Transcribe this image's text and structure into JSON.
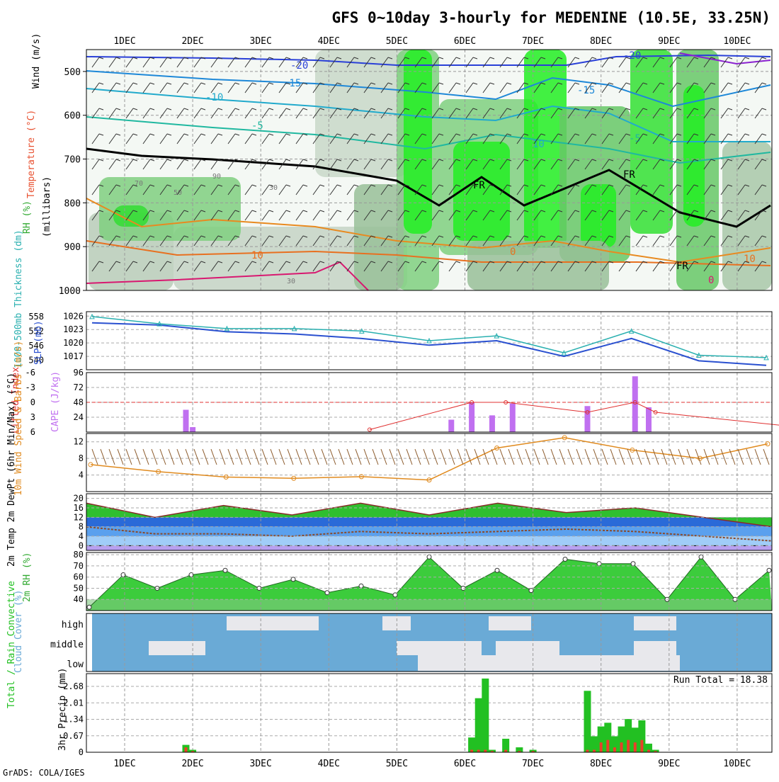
{
  "title": "GFS 0~10day 3-hourly for MEDENINE (10.5E, 33.25N)",
  "credit": "GrADS: COLA/IGES",
  "run_total_label": "Run Total = 18.38",
  "day_labels": [
    "1DEC",
    "2DEC",
    "3DEC",
    "4DEC",
    "5DEC",
    "6DEC",
    "7DEC",
    "8DEC",
    "9DEC",
    "10DEC"
  ],
  "colors": {
    "wind_line": "#8b5a2b",
    "speed": "#e08a1e",
    "rain": "#22c022",
    "convective": "#e8402a",
    "cape": "#c070f0",
    "slp": "#2a50d0",
    "thick": "#2ab0b0",
    "cloud": "#6aaad6",
    "rh_green": "#33cc33",
    "frame": "#000000"
  },
  "chart_data": [
    {
      "type": "heatmap",
      "panel": "upper_air",
      "ylabel_parts": [
        {
          "text": "Wind (m/s)",
          "color": "#000000"
        },
        {
          "text": "Temperature (°C)",
          "color": "#e85030"
        },
        {
          "text": "RH (%)",
          "color": "#33aa33"
        },
        {
          "text": "(millibars)",
          "color": "#000000"
        }
      ],
      "y_ticks": [
        500,
        600,
        700,
        800,
        900,
        1000
      ],
      "ylim": [
        1000,
        450
      ],
      "isotherm_labels": [
        "-20",
        "-15",
        "-10",
        "-5",
        "FR",
        "FR",
        "10",
        "0",
        "-20",
        "-15",
        "10",
        "-5",
        "FR",
        "10",
        "0"
      ],
      "rh_labels": [
        "70",
        "90",
        "30",
        "50",
        "30"
      ]
    },
    {
      "type": "line",
      "panel": "thickness_slp",
      "ylabel_left": "1000-500mb Thickness (dm)",
      "ylabel_right": "SLP (mb)",
      "y_ticks_thickness": [
        540,
        546,
        552,
        558
      ],
      "y_ticks_slp": [
        1017,
        1020,
        1023,
        1026
      ],
      "x": [
        0,
        1,
        2,
        3,
        4,
        5,
        6,
        7,
        8,
        9,
        10
      ],
      "series": [
        {
          "name": "SLP",
          "values": [
            1024.5,
            1024,
            1022.5,
            1022,
            1021,
            1019.5,
            1020.5,
            1017,
            1021,
            1016,
            1015
          ]
        },
        {
          "name": "Thickness",
          "values": [
            558,
            555,
            553,
            553,
            552,
            548,
            550,
            543,
            552,
            542,
            541
          ]
        }
      ]
    },
    {
      "type": "bar",
      "panel": "cape_li",
      "ylabel_left": "Lifted Index",
      "ylabel_right": "CAPE (J/kg)",
      "y_ticks_li": [
        -6,
        -3,
        0,
        3,
        6
      ],
      "y_ticks_cape": [
        24,
        48,
        72,
        96
      ],
      "cape": [
        {
          "day": 0.9,
          "v": 36
        },
        {
          "day": 1.0,
          "v": 8
        },
        {
          "day": 4.8,
          "v": 20
        },
        {
          "day": 5.1,
          "v": 48
        },
        {
          "day": 5.4,
          "v": 27
        },
        {
          "day": 5.7,
          "v": 46
        },
        {
          "day": 6.8,
          "v": 42
        },
        {
          "day": 7.5,
          "v": 90
        },
        {
          "day": 7.7,
          "v": 40
        }
      ],
      "li": [
        {
          "day": 3.6,
          "v": 5.5
        },
        {
          "day": 5.1,
          "v": 0
        },
        {
          "day": 5.6,
          "v": 0
        },
        {
          "day": 6.8,
          "v": 2
        },
        {
          "day": 7.5,
          "v": 0
        },
        {
          "day": 7.8,
          "v": 2
        },
        {
          "day": 9.9,
          "v": 5
        }
      ]
    },
    {
      "type": "line",
      "panel": "wind10m",
      "ylabel": "10m Wind Speed & Barbs (m/s)",
      "y_ticks": [
        4,
        8,
        12
      ],
      "x": [
        0,
        1,
        2,
        3,
        4,
        5,
        6,
        7,
        8,
        9,
        10
      ],
      "series": [
        {
          "name": "Speed",
          "values": [
            6.5,
            4.8,
            3.5,
            3.2,
            3.6,
            2.8,
            10.5,
            13,
            10,
            8,
            11.5
          ]
        }
      ]
    },
    {
      "type": "area",
      "panel": "temp2m",
      "ylabel": "2m Temp 2m DewPt (6hr Min/Max) (°C)",
      "y_ticks": [
        0,
        4,
        8,
        12,
        16,
        20
      ],
      "x": [
        0,
        1,
        2,
        3,
        4,
        5,
        6,
        7,
        8,
        9,
        10
      ],
      "series": [
        {
          "name": "Temp",
          "values": [
            18,
            12,
            17,
            13,
            18,
            13,
            18,
            14,
            16,
            12,
            8
          ]
        },
        {
          "name": "DewPt",
          "values": [
            8,
            5,
            5,
            4,
            6,
            5,
            6,
            7,
            6,
            4,
            2
          ]
        }
      ]
    },
    {
      "type": "area",
      "panel": "rh2m",
      "ylabel": "2m RH (%)",
      "y_ticks": [
        40,
        50,
        60,
        70,
        80
      ],
      "x": [
        0,
        0.5,
        1,
        1.5,
        2,
        2.5,
        3,
        3.5,
        4,
        4.5,
        5,
        5.5,
        6,
        6.5,
        7,
        7.5,
        8,
        8.5,
        9,
        9.5,
        10
      ],
      "series": [
        {
          "name": "RH",
          "values": [
            33,
            62,
            50,
            62,
            66,
            50,
            58,
            46,
            52,
            44,
            78,
            50,
            66,
            48,
            76,
            72,
            72,
            40,
            78,
            40,
            66
          ]
        }
      ]
    },
    {
      "type": "heatmap",
      "panel": "cloud",
      "ylabel": "Cloud Cover (%)",
      "y_ticks": [
        "high",
        "middle",
        "low"
      ]
    },
    {
      "type": "bar",
      "panel": "precip",
      "ylabel_left": "Total / Rain Convective",
      "ylabel_right": "3hr Precip (mm)",
      "y_ticks": [
        0,
        0.67,
        1.34,
        2.01,
        2.68
      ],
      "x": [
        0.9,
        1.0,
        5.1,
        5.2,
        5.3,
        5.4,
        5.6,
        5.8,
        6.0,
        6.8,
        6.9,
        7.0,
        7.1,
        7.2,
        7.3,
        7.4,
        7.5,
        7.6,
        7.7,
        7.8
      ],
      "series": [
        {
          "name": "Total",
          "values": [
            0.3,
            0.1,
            0.6,
            2.2,
            3.0,
            0.1,
            0.55,
            0.2,
            0.1,
            2.5,
            0.65,
            1.05,
            1.2,
            0.65,
            1.05,
            1.35,
            1.0,
            1.3,
            0.35,
            0.1
          ]
        },
        {
          "name": "Convective",
          "values": [
            0.2,
            0.05,
            0.1,
            0.1,
            0.1,
            0.05,
            0.1,
            0.05,
            0.05,
            0.1,
            0.1,
            0.4,
            0.5,
            0.2,
            0.4,
            0.5,
            0.4,
            0.5,
            0.1,
            0.05
          ]
        }
      ]
    }
  ]
}
